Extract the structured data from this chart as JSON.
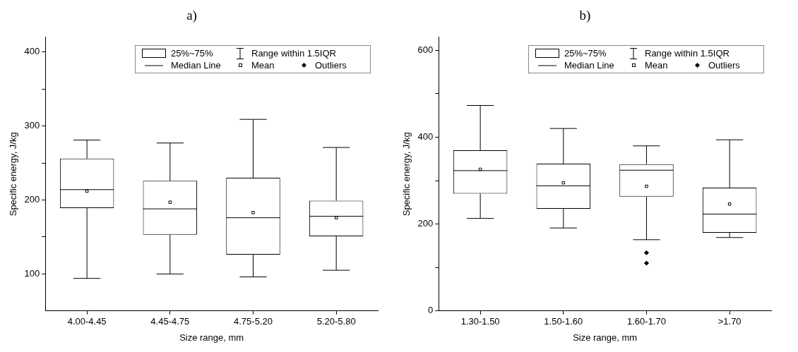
{
  "chart_data": [
    {
      "type": "box",
      "title": "a)",
      "xlabel": "Size range, mm",
      "ylabel": "Specific energy, J/kg",
      "color": "#000000",
      "categories": [
        "4.00-4.45",
        "4.45-4.75",
        "4.75-5.20",
        "5.20-5.80"
      ],
      "boxes": [
        {
          "low": 94,
          "q1": 189,
          "median": 214,
          "q3": 256,
          "high": 281,
          "mean": 212
        },
        {
          "low": 100,
          "q1": 153,
          "median": 188,
          "q3": 226,
          "high": 277,
          "mean": 197
        },
        {
          "low": 96,
          "q1": 126,
          "median": 176,
          "q3": 230,
          "high": 309,
          "mean": 183
        },
        {
          "low": 105,
          "q1": 151,
          "median": 178,
          "q3": 199,
          "high": 271,
          "mean": 176
        }
      ],
      "ylim": [
        50,
        420
      ],
      "yticks": [
        100,
        {
          "value": 150,
          "label": null
        },
        200,
        {
          "value": 250,
          "label": null
        },
        300,
        {
          "value": 350,
          "label": null
        },
        400
      ],
      "grid": false,
      "marker": "square",
      "annotations": [
        "25%~75%",
        "Range within 1.5IQR",
        "Median Line",
        "Mean",
        "Outliers"
      ]
    },
    {
      "type": "box",
      "title": "b)",
      "xlabel": "Size range, mm",
      "ylabel": "Specific energy, J/kg",
      "color": "#000000",
      "categories": [
        "1.30-1.50",
        "1.50-1.60",
        "1.60-1.70",
        ">1.70"
      ],
      "boxes": [
        {
          "low": 213,
          "q1": 270,
          "median": 323,
          "q3": 370,
          "high": 473,
          "mean": 326
        },
        {
          "low": 191,
          "q1": 235,
          "median": 288,
          "q3": 339,
          "high": 420,
          "mean": 295
        },
        {
          "low": 164,
          "q1": 263,
          "median": 324,
          "q3": 338,
          "high": 380,
          "mean": 287,
          "outliers": [
            134,
            110
          ]
        },
        {
          "low": 169,
          "q1": 180,
          "median": 223,
          "q3": 284,
          "high": 394,
          "mean": 246
        }
      ],
      "ylim": [
        0,
        630
      ],
      "yticks": [
        0,
        {
          "value": 100,
          "label": null
        },
        200,
        {
          "value": 300,
          "label": null
        },
        400,
        {
          "value": 500,
          "label": null
        },
        600
      ],
      "grid": false,
      "marker": "square",
      "annotations": [
        "25%~75%",
        "Range within 1.5IQR",
        "Median Line",
        "Mean",
        "Outliers"
      ]
    }
  ]
}
